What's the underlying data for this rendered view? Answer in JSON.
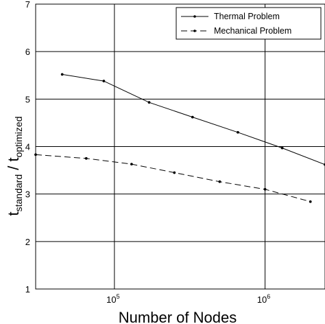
{
  "chart_data": {
    "type": "line",
    "x_scale": "log",
    "xlabel": "Number of Nodes",
    "ylabel": {
      "base": "t",
      "numerator_sub": "standard",
      "denominator_base": "t",
      "denominator_sub": "optimized"
    },
    "xlim": [
      30000,
      2500000
    ],
    "ylim": [
      1,
      7
    ],
    "grid": true,
    "legend_position": "top-right",
    "y_ticks": [
      "1",
      "2",
      "3",
      "4",
      "5",
      "6",
      "7"
    ],
    "x_ticks": [
      {
        "value": 100000,
        "base": "10",
        "exp": "5"
      },
      {
        "value": 1000000,
        "base": "10",
        "exp": "6"
      }
    ],
    "series": [
      {
        "name": "Thermal Problem",
        "style": "solid",
        "x": [
          45000,
          85000,
          170000,
          330000,
          660000,
          1300000,
          2500000
        ],
        "y": [
          5.52,
          5.38,
          4.93,
          4.62,
          4.3,
          3.97,
          3.62
        ]
      },
      {
        "name": "Mechanical Problem",
        "style": "dashed",
        "x": [
          30000,
          65000,
          130000,
          250000,
          500000,
          1000000,
          2000000
        ],
        "y": [
          3.83,
          3.75,
          3.63,
          3.45,
          3.26,
          3.1,
          2.84
        ]
      }
    ]
  }
}
